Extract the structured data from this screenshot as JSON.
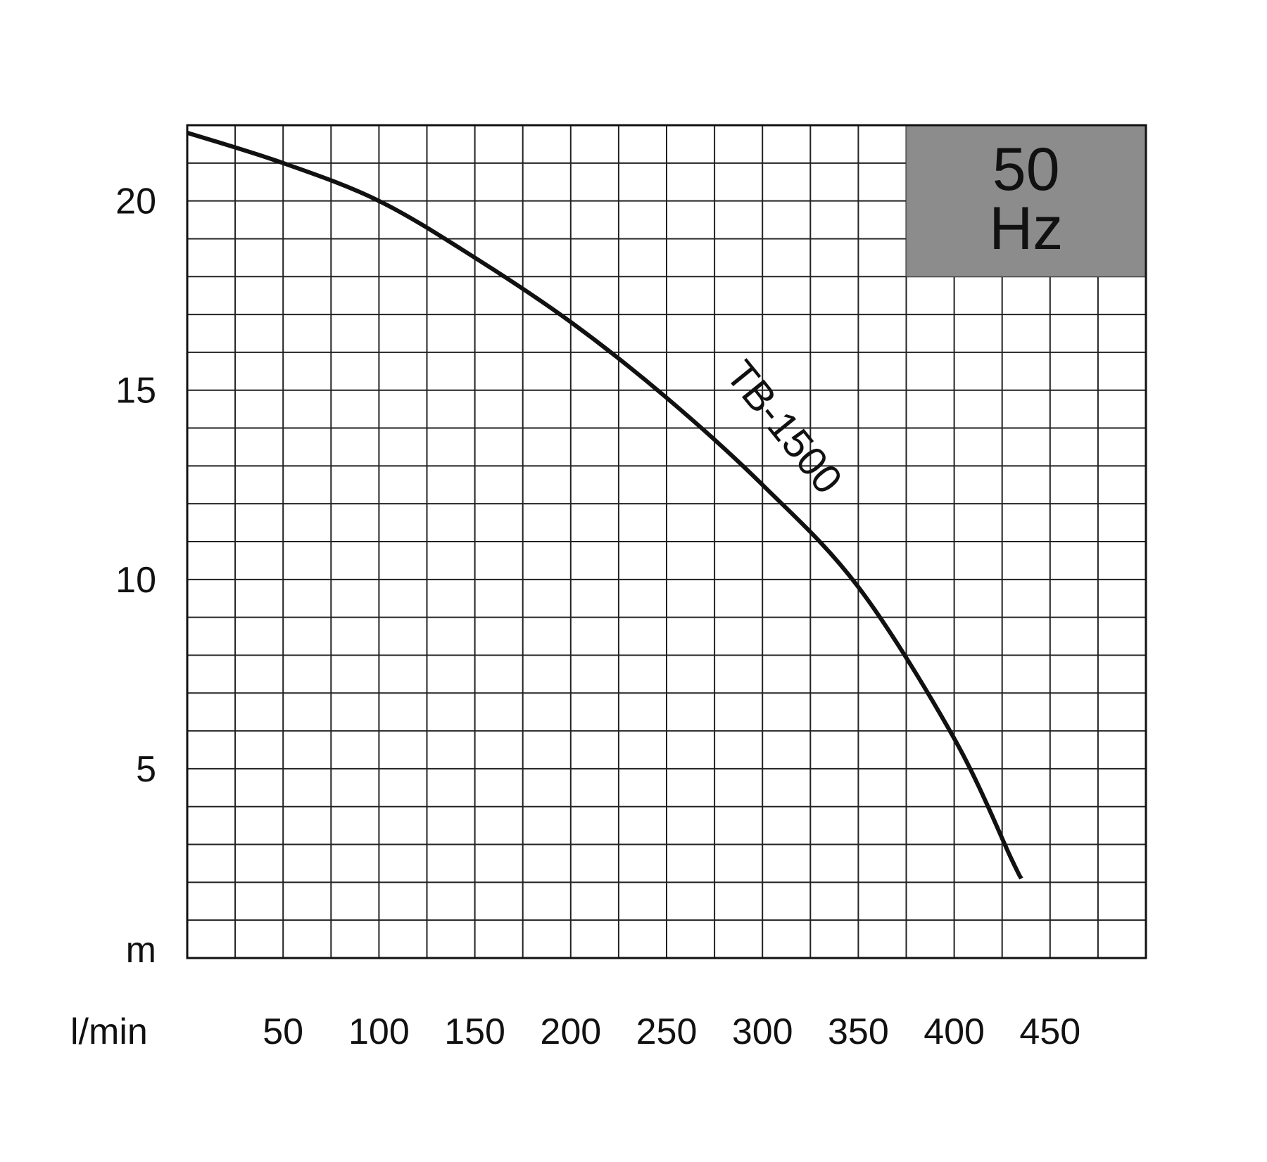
{
  "chart_data": {
    "type": "line",
    "title": "",
    "xlabel": "l/min",
    "ylabel": "m",
    "xlim": [
      0,
      500
    ],
    "ylim": [
      0,
      22
    ],
    "x_ticks": [
      "50",
      "100",
      "150",
      "200",
      "250",
      "300",
      "350",
      "400",
      "450"
    ],
    "y_ticks": [
      "20",
      "15",
      "10",
      "5"
    ],
    "grid": true,
    "frequency_badge": {
      "line1": "50",
      "line2": "Hz",
      "fill_color": "#8c8c8c"
    },
    "series": [
      {
        "name": "TB-1500",
        "color": "#111111",
        "x": [
          0,
          50,
          100,
          150,
          200,
          250,
          300,
          350,
          400,
          430,
          435
        ],
        "y": [
          21.8,
          21.0,
          20.0,
          18.5,
          16.8,
          14.8,
          12.5,
          9.8,
          5.8,
          2.6,
          2.1
        ]
      }
    ]
  }
}
